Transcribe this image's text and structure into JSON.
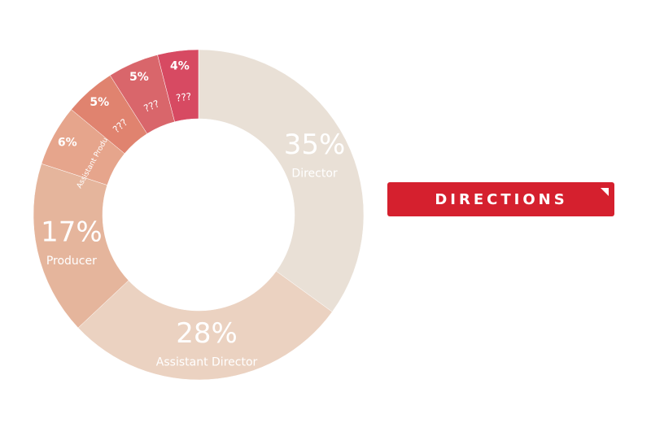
{
  "chart_data": {
    "type": "donut",
    "categories": [
      "Director",
      "Assistant Director",
      "Producer",
      "Assistant Producer",
      "???",
      "???",
      "???"
    ],
    "values": [
      35,
      28,
      17,
      6,
      5,
      5,
      4
    ],
    "value_labels": [
      "35%",
      "28%",
      "17%",
      "6%",
      "5%",
      "5%",
      "4%"
    ],
    "colors": [
      "#e9e0d6",
      "#ebd2c1",
      "#e5b59c",
      "#e6a58c",
      "#e0836f",
      "#d9666b",
      "#d74a62"
    ]
  },
  "button": {
    "label": "DIRECTIONS"
  }
}
